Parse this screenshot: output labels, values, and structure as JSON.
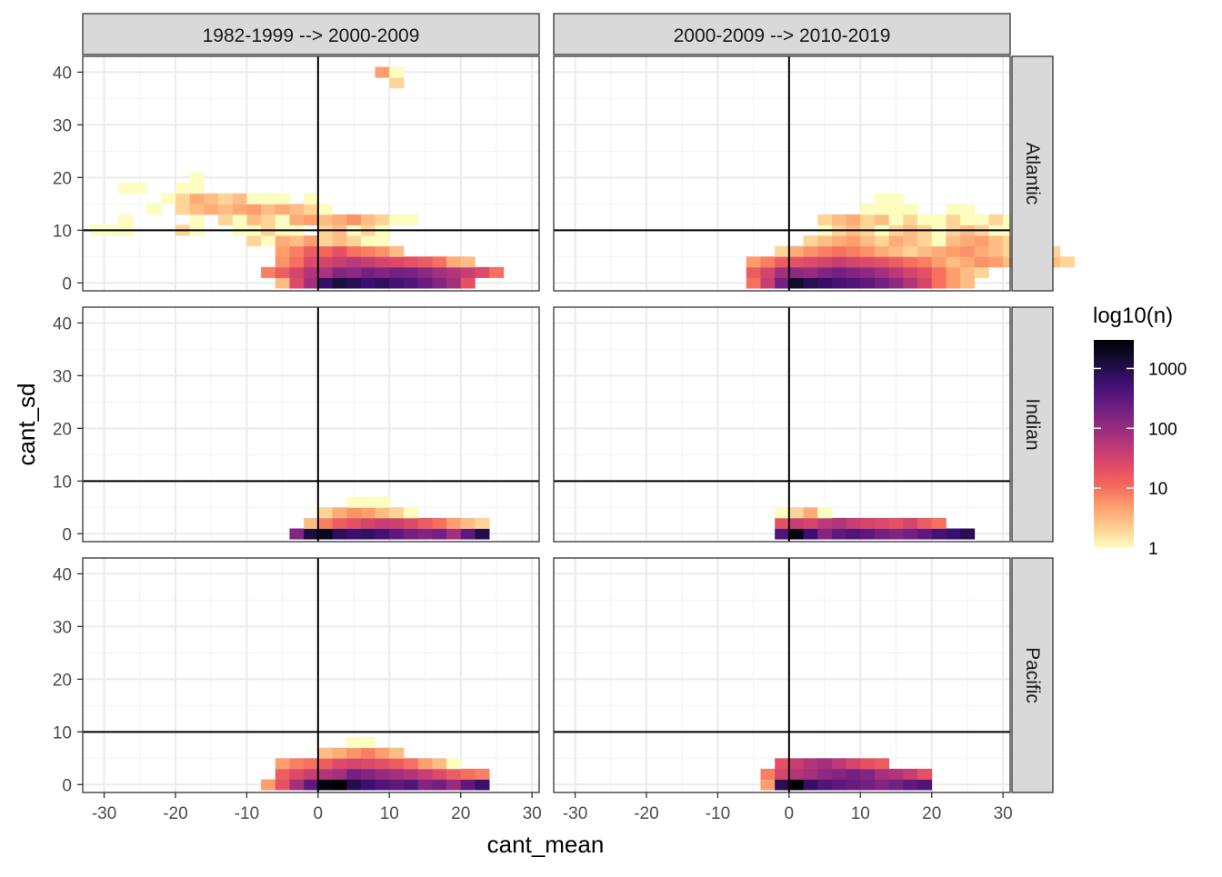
{
  "chart_data": {
    "type": "heatmap",
    "xlabel": "cant_mean",
    "ylabel": "cant_sd",
    "xlim": [
      -33,
      31
    ],
    "ylim": [
      -1.5,
      43
    ],
    "x_ticks": [
      -30,
      -20,
      -10,
      0,
      10,
      20,
      30
    ],
    "y_ticks": [
      0,
      10,
      20,
      30,
      40
    ],
    "x_tick_labels": [
      "-30",
      "-20",
      "-10",
      "0",
      "10",
      "20",
      "30"
    ],
    "y_tick_labels": [
      "0",
      "10",
      "20",
      "30",
      "40"
    ],
    "ref_lines": {
      "vertical_x": 0,
      "horizontal_y": 10
    },
    "bin_size": 2,
    "column_strips": [
      "1982-1999 --> 2000-2009",
      "2000-2009 --> 2010-2019"
    ],
    "row_strips": [
      "Atlantic",
      "Indian",
      "Pacific"
    ],
    "legend": {
      "title": "log10(n)",
      "breaks": [
        1,
        10,
        100,
        1000
      ],
      "labels": [
        "1",
        "10",
        "100",
        "1000"
      ],
      "max_count": 3000,
      "colors": [
        "#fcfdbf",
        "#fece91",
        "#fe9f6d",
        "#f4695c",
        "#de4968",
        "#b73779",
        "#8c2981",
        "#641a80",
        "#3b0f70",
        "#140e36",
        "#000004"
      ]
    },
    "panels": [
      {
        "row": "Atlantic",
        "col": "1982-1999 --> 2000-2009",
        "rows": [
          {
            "y": 0,
            "x0": -5,
            "counts": [
              3,
              25,
              80,
              700,
              1200,
              900,
              600,
              800,
              500,
              400,
              250,
              150,
              80,
              20
            ]
          },
          {
            "y": 2,
            "x0": -7,
            "counts": [
              8,
              15,
              30,
              60,
              70,
              150,
              120,
              200,
              150,
              200,
              180,
              120,
              80,
              60,
              40,
              25,
              10
            ]
          },
          {
            "y": 4,
            "x0": -5,
            "counts": [
              6,
              10,
              25,
              30,
              40,
              50,
              40,
              30,
              25,
              20,
              15,
              10,
              4,
              3
            ]
          },
          {
            "y": 6,
            "x0": -5,
            "counts": [
              5,
              8,
              15,
              12,
              20,
              10,
              8,
              6,
              3
            ]
          },
          {
            "y": 8,
            "x0": -9,
            "counts": [
              2,
              1,
              4,
              3,
              5,
              2,
              3,
              2,
              1,
              1
            ]
          },
          {
            "y": 10,
            "x0": -31,
            "counts": [
              1,
              1,
              1,
              0,
              0,
              0,
              2,
              1,
              0,
              0,
              1,
              1,
              2,
              1,
              1,
              0,
              2,
              3,
              1,
              2,
              1
            ]
          },
          {
            "y": 12,
            "x0": -27,
            "counts": [
              1,
              0,
              0,
              0,
              0,
              1,
              0,
              2,
              1,
              3,
              2,
              1,
              4,
              5,
              3,
              4,
              6,
              3,
              2,
              1,
              1
            ]
          },
          {
            "y": 14,
            "x0": -23,
            "counts": [
              1,
              0,
              2,
              3,
              4,
              3,
              4,
              5,
              3,
              4,
              3,
              2,
              1
            ]
          },
          {
            "y": 16,
            "x0": -21,
            "counts": [
              1,
              2,
              4,
              3,
              2,
              3,
              1,
              1,
              1,
              0,
              1
            ]
          },
          {
            "y": 18,
            "x0": -27,
            "counts": [
              1,
              1,
              0,
              0,
              1,
              1
            ]
          },
          {
            "y": 20,
            "x0": -17,
            "counts": [
              1
            ]
          },
          {
            "y": 38,
            "x0": 11,
            "counts": [
              2
            ]
          },
          {
            "y": 40,
            "x0": 9,
            "counts": [
              5,
              1
            ]
          }
        ]
      },
      {
        "row": "Atlantic",
        "col": "2000-2009 --> 2010-2019",
        "rows": [
          {
            "y": 0,
            "x0": -5,
            "counts": [
              10,
              40,
              200,
              1500,
              900,
              700,
              500,
              400,
              300,
              200,
              120,
              60,
              30,
              10,
              5,
              3
            ]
          },
          {
            "y": 2,
            "x0": -5,
            "counts": [
              15,
              30,
              80,
              120,
              100,
              150,
              200,
              150,
              120,
              80,
              50,
              30,
              20,
              10,
              5,
              3,
              2
            ]
          },
          {
            "y": 4,
            "x0": -5,
            "counts": [
              5,
              8,
              15,
              20,
              25,
              30,
              40,
              30,
              25,
              20,
              15,
              10,
              8,
              5,
              3,
              4,
              6,
              5,
              3,
              2,
              1,
              3,
              2
            ]
          },
          {
            "y": 6,
            "x0": -1,
            "counts": [
              2,
              4,
              6,
              8,
              10,
              8,
              6,
              4,
              3,
              2,
              3,
              4,
              5,
              6,
              4,
              3,
              2,
              4,
              3,
              2
            ]
          },
          {
            "y": 8,
            "x0": 3,
            "counts": [
              2,
              3,
              4,
              5,
              3,
              2,
              4,
              3,
              2,
              1,
              3,
              4,
              5,
              3,
              2,
              1
            ]
          },
          {
            "y": 10,
            "x0": 5,
            "counts": [
              1,
              2,
              3,
              2,
              1,
              2,
              3,
              2,
              1,
              2,
              3,
              2,
              1,
              1,
              1
            ]
          },
          {
            "y": 12,
            "x0": 5,
            "counts": [
              2,
              3,
              4,
              2,
              3,
              1,
              2,
              1,
              1,
              2,
              1,
              1,
              2,
              1
            ]
          },
          {
            "y": 14,
            "x0": 11,
            "counts": [
              1,
              1,
              1,
              1,
              0,
              0,
              1,
              1
            ]
          },
          {
            "y": 16,
            "x0": 13,
            "counts": [
              1,
              1
            ]
          }
        ]
      },
      {
        "row": "Indian",
        "col": "1982-1999 --> 2000-2009",
        "rows": [
          {
            "y": 0,
            "x0": -3,
            "counts": [
              150,
              1200,
              2000,
              800,
              600,
              700,
              500,
              300,
              200,
              150,
              200,
              80,
              300,
              1000
            ]
          },
          {
            "y": 2,
            "x0": -1,
            "counts": [
              3,
              8,
              15,
              20,
              30,
              40,
              35,
              25,
              15,
              10,
              5,
              3,
              2
            ]
          },
          {
            "y": 4,
            "x0": 1,
            "counts": [
              2,
              4,
              6,
              5,
              3,
              2,
              1
            ]
          },
          {
            "y": 6,
            "x0": 5,
            "counts": [
              1,
              1,
              1
            ]
          }
        ]
      },
      {
        "row": "Indian",
        "col": "2000-2009 --> 2010-2019",
        "rows": [
          {
            "y": 0,
            "x0": -1,
            "counts": [
              400,
              2500,
              600,
              150,
              300,
              400,
              300,
              200,
              150,
              200,
              300,
              500,
              600,
              900
            ]
          },
          {
            "y": 2,
            "x0": -1,
            "counts": [
              20,
              40,
              30,
              50,
              60,
              40,
              30,
              25,
              20,
              30,
              15,
              10
            ]
          },
          {
            "y": 4,
            "x0": -1,
            "counts": [
              1,
              2,
              4,
              1
            ]
          }
        ]
      },
      {
        "row": "Pacific",
        "col": "1982-1999 --> 2000-2009",
        "rows": [
          {
            "y": 0,
            "x0": -7,
            "counts": [
              5,
              20,
              80,
              300,
              2500,
              3000,
              1000,
              600,
              400,
              300,
              400,
              150,
              200,
              100,
              300,
              600
            ]
          },
          {
            "y": 2,
            "x0": -5,
            "counts": [
              15,
              25,
              40,
              60,
              80,
              200,
              150,
              100,
              80,
              60,
              40,
              25,
              15,
              10,
              8
            ]
          },
          {
            "y": 4,
            "x0": -5,
            "counts": [
              5,
              8,
              10,
              15,
              25,
              30,
              25,
              20,
              15,
              10,
              5,
              3,
              1
            ]
          },
          {
            "y": 6,
            "x0": 1,
            "counts": [
              3,
              4,
              6,
              8,
              5,
              3
            ]
          },
          {
            "y": 8,
            "x0": 5,
            "counts": [
              1,
              1
            ]
          }
        ]
      },
      {
        "row": "Pacific",
        "col": "2000-2009 --> 2010-2019",
        "rows": [
          {
            "y": 0,
            "x0": -3,
            "counts": [
              5,
              900,
              3000,
              700,
              400,
              300,
              250,
              200,
              150,
              200,
              300,
              400
            ]
          },
          {
            "y": 2,
            "x0": -3,
            "counts": [
              8,
              30,
              60,
              80,
              120,
              150,
              200,
              150,
              80,
              60,
              40,
              20
            ]
          },
          {
            "y": 4,
            "x0": -1,
            "counts": [
              20,
              40,
              60,
              80,
              50,
              30,
              20,
              15
            ]
          }
        ]
      }
    ]
  }
}
